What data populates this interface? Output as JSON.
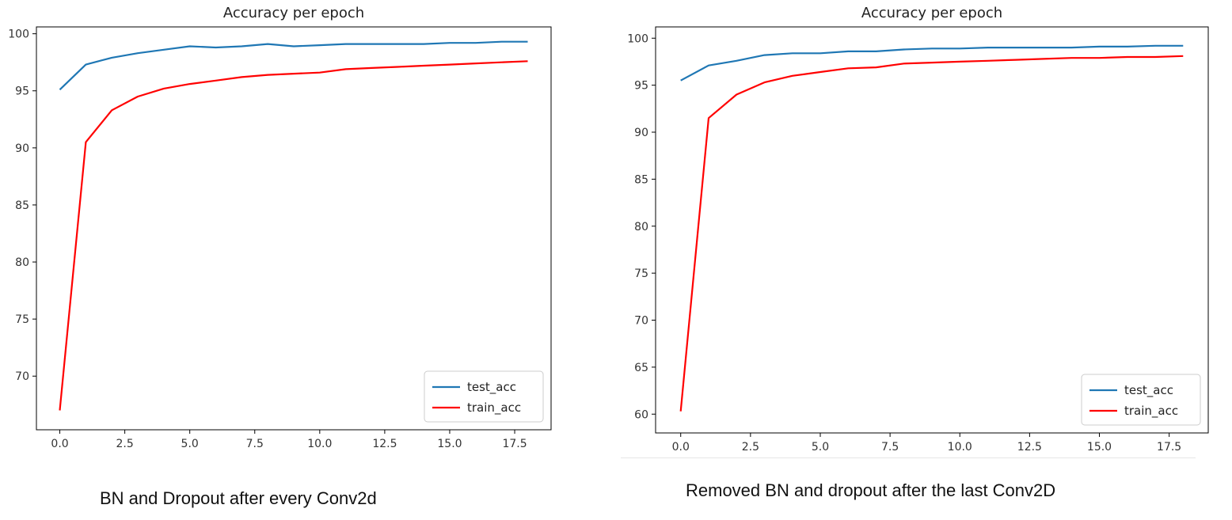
{
  "chart_data": [
    {
      "type": "line",
      "title": "Accuracy per epoch",
      "xlabel": "",
      "ylabel": "",
      "xlim": [
        -0.9,
        18.9
      ],
      "ylim": [
        65.3,
        100.6
      ],
      "xticks": [
        0.0,
        2.5,
        5.0,
        7.5,
        10.0,
        12.5,
        15.0,
        17.5
      ],
      "xtick_labels": [
        "0.0",
        "2.5",
        "5.0",
        "7.5",
        "10.0",
        "12.5",
        "15.0",
        "17.5"
      ],
      "yticks": [
        70,
        75,
        80,
        85,
        90,
        95,
        100
      ],
      "ytick_labels": [
        "70",
        "75",
        "80",
        "85",
        "90",
        "95",
        "100"
      ],
      "grid": false,
      "legend_position": "bottom-right",
      "x": [
        0,
        1,
        2,
        3,
        4,
        5,
        6,
        7,
        8,
        9,
        10,
        11,
        12,
        13,
        14,
        15,
        16,
        17,
        18
      ],
      "series": [
        {
          "name": "test_acc",
          "color": "#1f77b4",
          "values": [
            95.1,
            97.3,
            97.9,
            98.3,
            98.6,
            98.9,
            98.8,
            98.9,
            99.1,
            98.9,
            99.0,
            99.1,
            99.1,
            99.1,
            99.1,
            99.2,
            99.2,
            99.3,
            99.3
          ]
        },
        {
          "name": "train_acc",
          "color": "#ff0000",
          "values": [
            67.0,
            90.5,
            93.3,
            94.5,
            95.2,
            95.6,
            95.9,
            96.2,
            96.4,
            96.5,
            96.6,
            96.9,
            97.0,
            97.1,
            97.2,
            97.3,
            97.4,
            97.5,
            97.6
          ]
        }
      ]
    },
    {
      "type": "line",
      "title": "Accuracy per epoch",
      "xlabel": "",
      "ylabel": "",
      "xlim": [
        -0.9,
        18.9
      ],
      "ylim": [
        58.0,
        101.2
      ],
      "xticks": [
        0.0,
        2.5,
        5.0,
        7.5,
        10.0,
        12.5,
        15.0,
        17.5
      ],
      "xtick_labels": [
        "0.0",
        "2.5",
        "5.0",
        "7.5",
        "10.0",
        "12.5",
        "15.0",
        "17.5"
      ],
      "yticks": [
        60,
        65,
        70,
        75,
        80,
        85,
        90,
        95,
        100
      ],
      "ytick_labels": [
        "60",
        "65",
        "70",
        "75",
        "80",
        "85",
        "90",
        "95",
        "100"
      ],
      "grid": false,
      "legend_position": "bottom-right",
      "x": [
        0,
        1,
        2,
        3,
        4,
        5,
        6,
        7,
        8,
        9,
        10,
        11,
        12,
        13,
        14,
        15,
        16,
        17,
        18
      ],
      "series": [
        {
          "name": "test_acc",
          "color": "#1f77b4",
          "values": [
            95.5,
            97.1,
            97.6,
            98.2,
            98.4,
            98.4,
            98.6,
            98.6,
            98.8,
            98.9,
            98.9,
            99.0,
            99.0,
            99.0,
            99.0,
            99.1,
            99.1,
            99.2,
            99.2
          ]
        },
        {
          "name": "train_acc",
          "color": "#ff0000",
          "values": [
            60.3,
            91.5,
            94.0,
            95.3,
            96.0,
            96.4,
            96.8,
            96.9,
            97.3,
            97.4,
            97.5,
            97.6,
            97.7,
            97.8,
            97.9,
            97.9,
            98.0,
            98.0,
            98.1
          ]
        }
      ]
    }
  ],
  "captions": {
    "left": "BN and Dropout after every Conv2d",
    "right": "Removed BN and dropout after the last Conv2D"
  }
}
